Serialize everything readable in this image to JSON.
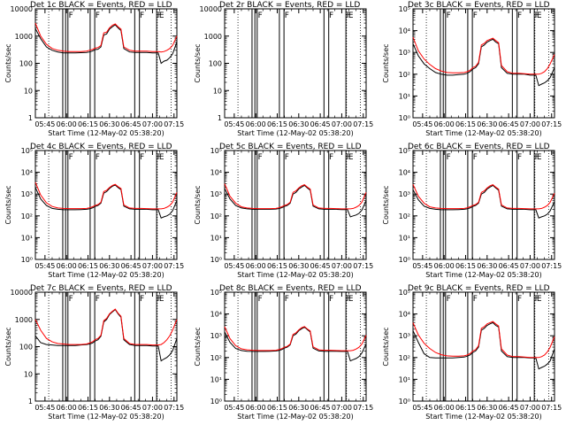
{
  "figure": {
    "xlabel": "Start Time (12-May-02 05:38:20)",
    "ylabel": "Counts/sec",
    "x_ticks": [
      "05:45",
      "06:00",
      "06:15",
      "06:30",
      "06:45",
      "07:00",
      "07:15"
    ],
    "x_tick_minutes": [
      45,
      60,
      75,
      90,
      105,
      120,
      135
    ],
    "xlim_minutes": [
      38.3,
      137
    ],
    "series_colors": {
      "events": "#000000",
      "lld": "#ff0000"
    },
    "dotted_line_minutes": [
      47.6,
      123.3,
      133.0
    ],
    "solid_line_minutes": [
      57.4,
      59.4,
      61.0,
      76.5,
      79.7,
      107.6,
      110.9,
      122.9
    ],
    "flag_minutes": [
      61.5,
      80.1,
      111.1,
      123.2
    ],
    "flag_label": "F",
    "e_label_minute": 124.6,
    "e_label": "E",
    "time_minutes": [
      38.3,
      42,
      46,
      50,
      54,
      58,
      62,
      66,
      70,
      74,
      76,
      78,
      80,
      82,
      84,
      86,
      88,
      90,
      92,
      94,
      96,
      98,
      100,
      104,
      108,
      112,
      116,
      120,
      122,
      124,
      126,
      128,
      130,
      132,
      134,
      137
    ]
  },
  "chart_data": [
    {
      "type": "line",
      "title": "Det 1c BLACK = Events, RED = LLD",
      "ylabel": "Counts/sec",
      "ylim": [
        1,
        10000
      ],
      "yscale": "log",
      "y_ticks": [
        "1",
        "10",
        "100",
        "1000",
        "10000"
      ],
      "series": [
        {
          "name": "Events",
          "color": "#000000",
          "values": [
            1900,
            800,
            400,
            300,
            260,
            240,
            240,
            240,
            245,
            250,
            260,
            280,
            320,
            330,
            400,
            1100,
            1200,
            1800,
            2200,
            2600,
            2000,
            1600,
            350,
            260,
            250,
            250,
            250,
            240,
            240,
            240,
            100,
            120,
            130,
            160,
            220,
            600
          ]
        },
        {
          "name": "LLD",
          "color": "#ff0000",
          "values": [
            3000,
            1000,
            500,
            350,
            300,
            280,
            270,
            270,
            270,
            280,
            300,
            320,
            360,
            380,
            450,
            1300,
            1400,
            2000,
            2500,
            2800,
            2200,
            1800,
            400,
            300,
            280,
            280,
            280,
            270,
            270,
            270,
            260,
            270,
            300,
            350,
            450,
            1000
          ]
        }
      ]
    },
    {
      "type": "line",
      "title": "Det 2r BLACK = Events, RED = LLD",
      "ylabel": "Counts/sec",
      "ylim": [
        1,
        10000
      ],
      "yscale": "log",
      "y_ticks": [
        "1",
        "10",
        "100",
        "1000",
        "10000"
      ],
      "series": []
    },
    {
      "type": "line",
      "title": "Det 3c BLACK = Events, RED = LLD",
      "ylabel": "Counts/sec",
      "ylim": [
        1,
        100000
      ],
      "yscale": "log",
      "y_ticks": [
        "10⁰",
        "10¹",
        "10²",
        "10³",
        "10⁴",
        "10⁵"
      ],
      "series": [
        {
          "name": "Events",
          "color": "#000000",
          "values": [
            2500,
            700,
            300,
            180,
            120,
            100,
            90,
            90,
            95,
            100,
            110,
            130,
            170,
            200,
            300,
            1800,
            2200,
            3000,
            3500,
            4000,
            3000,
            2500,
            200,
            110,
            100,
            100,
            100,
            90,
            90,
            90,
            30,
            35,
            40,
            50,
            70,
            200
          ]
        },
        {
          "name": "LLD",
          "color": "#ff0000",
          "values": [
            5000,
            1200,
            500,
            280,
            180,
            140,
            120,
            115,
            115,
            120,
            130,
            150,
            200,
            230,
            350,
            2200,
            2600,
            3500,
            4000,
            4500,
            3500,
            2800,
            250,
            130,
            110,
            110,
            105,
            100,
            100,
            100,
            100,
            110,
            130,
            180,
            300,
            800
          ]
        }
      ]
    },
    {
      "type": "line",
      "title": "Det 4c BLACK = Events, RED = LLD",
      "ylabel": "Counts/sec",
      "ylim": [
        1,
        100000
      ],
      "yscale": "log",
      "y_ticks": [
        "10⁰",
        "10¹",
        "10²",
        "10³",
        "10⁴",
        "10⁵"
      ],
      "series": [
        {
          "name": "Events",
          "color": "#000000",
          "values": [
            2000,
            600,
            300,
            220,
            200,
            190,
            190,
            190,
            195,
            200,
            210,
            230,
            270,
            300,
            380,
            1100,
            1300,
            1800,
            2300,
            2600,
            2000,
            1600,
            280,
            210,
            200,
            200,
            200,
            190,
            190,
            190,
            80,
            90,
            100,
            120,
            170,
            500
          ]
        },
        {
          "name": "LLD",
          "color": "#ff0000",
          "values": [
            3500,
            900,
            400,
            270,
            230,
            220,
            215,
            215,
            215,
            220,
            235,
            260,
            300,
            330,
            420,
            1300,
            1500,
            2000,
            2500,
            2800,
            2200,
            1800,
            320,
            230,
            220,
            220,
            215,
            210,
            210,
            210,
            210,
            220,
            250,
            300,
            420,
            1200
          ]
        }
      ]
    },
    {
      "type": "line",
      "title": "Det 5c BLACK = Events, RED = LLD",
      "ylabel": "Counts/sec",
      "ylim": [
        1,
        100000
      ],
      "yscale": "log",
      "y_ticks": [
        "10⁰",
        "10¹",
        "10²",
        "10³",
        "10⁴",
        "10⁵"
      ],
      "series": [
        {
          "name": "Events",
          "color": "#000000",
          "values": [
            1800,
            600,
            300,
            230,
            210,
            200,
            200,
            200,
            200,
            205,
            215,
            235,
            270,
            300,
            380,
            1000,
            1200,
            1700,
            2100,
            2500,
            1900,
            1500,
            280,
            210,
            200,
            200,
            200,
            195,
            195,
            195,
            90,
            100,
            110,
            130,
            180,
            500
          ]
        },
        {
          "name": "LLD",
          "color": "#ff0000",
          "values": [
            3000,
            800,
            380,
            260,
            230,
            220,
            215,
            215,
            215,
            220,
            235,
            260,
            300,
            330,
            420,
            1200,
            1400,
            1900,
            2400,
            2700,
            2100,
            1700,
            320,
            230,
            220,
            220,
            215,
            210,
            210,
            210,
            210,
            220,
            250,
            300,
            420,
            1200
          ]
        }
      ]
    },
    {
      "type": "line",
      "title": "Det 6c BLACK = Events, RED = LLD",
      "ylabel": "Counts/sec",
      "ylim": [
        1,
        100000
      ],
      "yscale": "log",
      "y_ticks": [
        "10⁰",
        "10¹",
        "10²",
        "10³",
        "10⁴",
        "10⁵"
      ],
      "series": [
        {
          "name": "Events",
          "color": "#000000",
          "values": [
            1600,
            550,
            280,
            220,
            200,
            190,
            190,
            190,
            195,
            200,
            210,
            230,
            270,
            300,
            380,
            1000,
            1200,
            1700,
            2100,
            2500,
            1900,
            1500,
            280,
            210,
            200,
            200,
            200,
            190,
            190,
            190,
            80,
            90,
            100,
            120,
            170,
            450
          ]
        },
        {
          "name": "LLD",
          "color": "#ff0000",
          "values": [
            2800,
            800,
            380,
            260,
            230,
            220,
            215,
            215,
            215,
            220,
            235,
            260,
            300,
            330,
            420,
            1200,
            1400,
            1900,
            2400,
            2700,
            2100,
            1700,
            320,
            230,
            220,
            220,
            215,
            210,
            210,
            210,
            210,
            220,
            250,
            300,
            420,
            1100
          ]
        }
      ]
    },
    {
      "type": "line",
      "title": "Det 7c BLACK = Events, RED = LLD",
      "ylabel": "Counts/sec",
      "ylim": [
        1,
        10000
      ],
      "yscale": "log",
      "y_ticks": [
        "1",
        "10",
        "100",
        "1000",
        "10000"
      ],
      "series": [
        {
          "name": "Events",
          "color": "#000000",
          "values": [
            250,
            140,
            120,
            115,
            110,
            110,
            110,
            110,
            115,
            120,
            125,
            135,
            160,
            180,
            240,
            800,
            1000,
            1500,
            1900,
            2300,
            1600,
            1200,
            180,
            120,
            110,
            110,
            110,
            105,
            105,
            105,
            30,
            35,
            40,
            50,
            70,
            200
          ]
        },
        {
          "name": "LLD",
          "color": "#ff0000",
          "values": [
            1000,
            400,
            200,
            150,
            130,
            125,
            120,
            120,
            120,
            125,
            135,
            150,
            180,
            200,
            260,
            900,
            1100,
            1600,
            2000,
            2400,
            1700,
            1300,
            200,
            130,
            120,
            120,
            120,
            115,
            115,
            115,
            120,
            140,
            180,
            250,
            400,
            1000
          ]
        }
      ]
    },
    {
      "type": "line",
      "title": "Det 8c BLACK = Events, RED = LLD",
      "ylabel": "Counts/sec",
      "ylim": [
        1,
        100000
      ],
      "yscale": "log",
      "y_ticks": [
        "10⁰",
        "10¹",
        "10²",
        "10³",
        "10⁴",
        "10⁵"
      ],
      "series": [
        {
          "name": "Events",
          "color": "#000000",
          "values": [
            1500,
            500,
            260,
            210,
            195,
            190,
            190,
            190,
            195,
            200,
            210,
            230,
            270,
            300,
            380,
            1000,
            1200,
            1700,
            2100,
            2500,
            1900,
            1500,
            270,
            200,
            195,
            195,
            195,
            190,
            190,
            190,
            70,
            80,
            90,
            110,
            160,
            420
          ]
        },
        {
          "name": "LLD",
          "color": "#ff0000",
          "values": [
            2600,
            750,
            350,
            250,
            225,
            215,
            210,
            210,
            210,
            215,
            230,
            255,
            295,
            325,
            410,
            1150,
            1350,
            1850,
            2350,
            2650,
            2050,
            1650,
            310,
            225,
            215,
            215,
            210,
            205,
            205,
            205,
            205,
            215,
            245,
            295,
            410,
            1050
          ]
        }
      ]
    },
    {
      "type": "line",
      "title": "Det 9c BLACK = Events, RED = LLD",
      "ylabel": "Counts/sec",
      "ylim": [
        1,
        100000
      ],
      "yscale": "log",
      "y_ticks": [
        "10⁰",
        "10¹",
        "10²",
        "10³",
        "10⁴",
        "10⁵"
      ],
      "series": [
        {
          "name": "Events",
          "color": "#000000",
          "values": [
            1700,
            500,
            150,
            100,
            95,
            95,
            95,
            95,
            100,
            105,
            115,
            130,
            170,
            200,
            300,
            1800,
            2200,
            3000,
            3500,
            4000,
            3000,
            2500,
            200,
            110,
            100,
            100,
            100,
            95,
            95,
            95,
            30,
            35,
            40,
            50,
            70,
            250
          ]
        },
        {
          "name": "LLD",
          "color": "#ff0000",
          "values": [
            4000,
            1100,
            450,
            260,
            170,
            135,
            120,
            115,
            115,
            120,
            130,
            150,
            200,
            230,
            350,
            2200,
            2600,
            3500,
            4000,
            4500,
            3500,
            2800,
            250,
            130,
            110,
            110,
            105,
            100,
            100,
            100,
            100,
            110,
            130,
            180,
            300,
            900
          ]
        }
      ]
    }
  ]
}
